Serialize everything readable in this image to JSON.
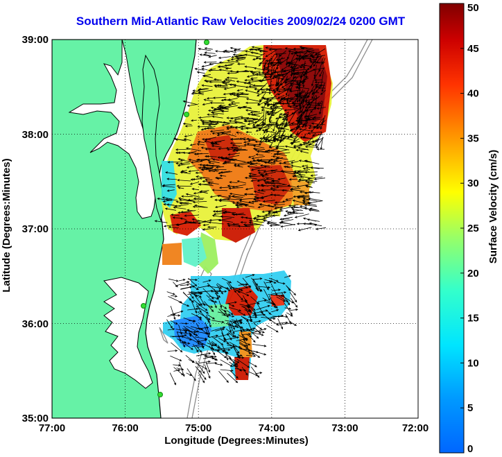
{
  "title": "Southern Mid-Atlantic Raw Velocities 2009/02/24 0200 GMT",
  "x_axis": {
    "label": "Longitude (Degrees:Minutes)",
    "ticks": [
      "77:00",
      "76:00",
      "75:00",
      "74:00",
      "73:00",
      "72:00"
    ]
  },
  "y_axis": {
    "label": "Latitude (Degrees:Minutes)",
    "ticks": [
      "39:00",
      "38:00",
      "37:00",
      "36:00",
      "35:00"
    ]
  },
  "colorbar": {
    "label": "Surface Velocity (cm/s)",
    "ticks": [
      "0",
      "5",
      "10",
      "15",
      "20",
      "25",
      "30",
      "35",
      "40",
      "45",
      "50"
    ],
    "min": 0,
    "max": 50,
    "colormap": "jet"
  },
  "colors": {
    "land": "#66f2a6",
    "coast": "#000000",
    "ocean": "#ffffff",
    "bathymetry": "#8c8c8c",
    "title": "#0000ee"
  },
  "map": {
    "lon_range": [
      -77,
      -72
    ],
    "lat_range": [
      35,
      39
    ],
    "grid": "dotted"
  }
}
